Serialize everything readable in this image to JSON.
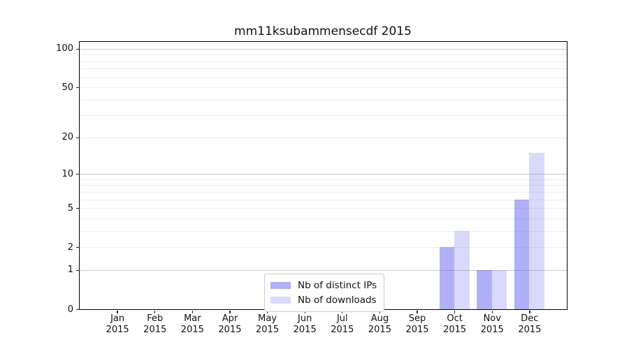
{
  "chart_data": {
    "type": "bar",
    "title": "mm11ksubammensecdf 2015",
    "categories": [
      "Jan",
      "Feb",
      "Mar",
      "Apr",
      "May",
      "Jun",
      "Jul",
      "Aug",
      "Sep",
      "Oct",
      "Nov",
      "Dec"
    ],
    "year": "2015",
    "series": [
      {
        "name": "Nb of distinct IPs",
        "color": "rgba(80,80,238,0.45)",
        "values": [
          0,
          0,
          0,
          0,
          0,
          0,
          0,
          0,
          0,
          2,
          1,
          6
        ]
      },
      {
        "name": "Nb of downloads",
        "color": "rgba(80,80,238,0.22)",
        "values": [
          0,
          0,
          0,
          0,
          0,
          0,
          0,
          0,
          0,
          3,
          1,
          15
        ]
      }
    ],
    "yscale": "log1p",
    "ylim": [
      0,
      113
    ],
    "yticks": [
      0,
      1,
      2,
      5,
      10,
      20,
      50,
      100
    ],
    "grid": {
      "major_color": "#c9c9c9",
      "minor_color": "#ededed",
      "grid_on": true
    },
    "legend": {
      "position": "lower center"
    }
  }
}
